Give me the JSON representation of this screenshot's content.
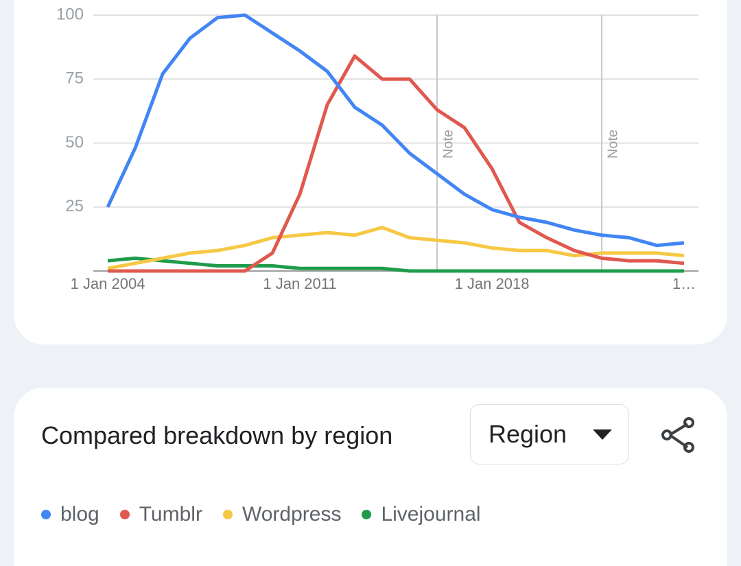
{
  "chart_data": {
    "type": "line",
    "categories": [
      "1 Jan 2004",
      null,
      null,
      null,
      null,
      null,
      null,
      "1 Jan 2011",
      null,
      null,
      null,
      null,
      null,
      null,
      "1 Jan 2018",
      null,
      null,
      null,
      null,
      null,
      null,
      "1…"
    ],
    "series": [
      {
        "name": "blog",
        "color": "#4285f4",
        "values": [
          25,
          48,
          77,
          91,
          99,
          100,
          93,
          86,
          78,
          64,
          57,
          46,
          38,
          30,
          24,
          21,
          19,
          16,
          14,
          13,
          10,
          11
        ]
      },
      {
        "name": "Tumblr",
        "color": "#e0584f",
        "values": [
          0,
          0,
          0,
          0,
          0,
          0,
          7,
          30,
          65,
          84,
          75,
          75,
          63,
          56,
          40,
          19,
          13,
          8,
          5,
          4,
          4,
          3
        ]
      },
      {
        "name": "Wordpress",
        "color": "#f6c844",
        "values": [
          1,
          3,
          5,
          7,
          8,
          10,
          13,
          14,
          15,
          14,
          17,
          13,
          12,
          11,
          9,
          8,
          8,
          6,
          7,
          7,
          7,
          6
        ]
      },
      {
        "name": "Livejournal",
        "color": "#1e9c4b",
        "values": [
          4,
          5,
          4,
          3,
          2,
          2,
          2,
          1,
          1,
          1,
          1,
          0,
          0,
          0,
          0,
          0,
          0,
          0,
          0,
          0,
          0,
          0
        ]
      }
    ],
    "ylim": [
      0,
      100
    ],
    "yticks": [
      25,
      50,
      75,
      100
    ],
    "grid": true,
    "annotations": [
      {
        "text": "Note",
        "x": 12
      },
      {
        "text": "Note",
        "x": 18
      }
    ]
  },
  "breakdown": {
    "title": "Compared breakdown by region",
    "dropdown": "Region"
  }
}
